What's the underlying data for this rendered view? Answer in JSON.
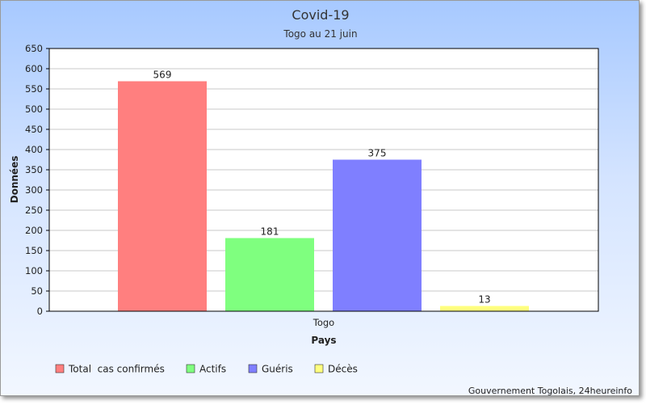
{
  "chart_data": {
    "type": "bar",
    "title": "Covid-19",
    "subtitle": "Togo au 21 juin",
    "xlabel": "Pays",
    "ylabel": "Données",
    "categories": [
      "Togo"
    ],
    "series": [
      {
        "name": "Total  cas confirmés",
        "values": [
          569
        ],
        "color": "#ff7f7f"
      },
      {
        "name": "Actifs",
        "values": [
          181
        ],
        "color": "#7fff7f"
      },
      {
        "name": "Guéris",
        "values": [
          375
        ],
        "color": "#7f7fff"
      },
      {
        "name": "Décès",
        "values": [
          13
        ],
        "color": "#ffff7f"
      }
    ],
    "ylim": [
      0,
      650
    ],
    "yticks": [
      0,
      50,
      100,
      150,
      200,
      250,
      300,
      350,
      400,
      450,
      500,
      550,
      600,
      650
    ],
    "grid": true,
    "legend": "bottom-left"
  },
  "source": "Gouvernement Togolais, 24heureinfo"
}
